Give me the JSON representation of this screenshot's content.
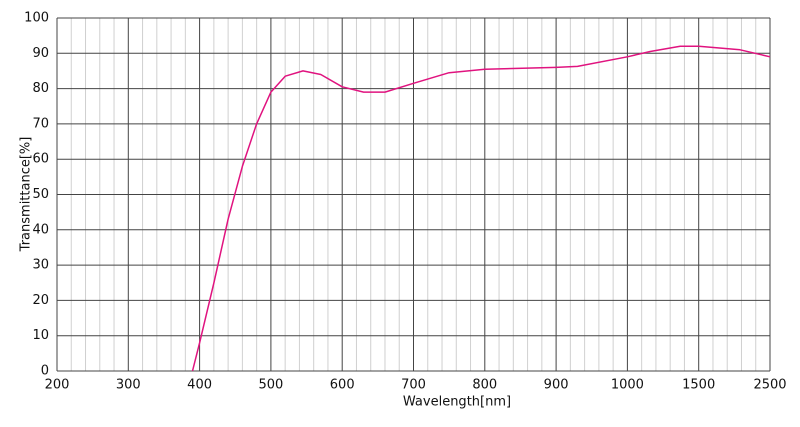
{
  "chart_data": {
    "type": "line",
    "x_label": "Wavelength[nm]",
    "y_label": "Transmittance[%]",
    "x": [
      390,
      400,
      420,
      440,
      460,
      480,
      500,
      520,
      545,
      570,
      600,
      630,
      660,
      700,
      750,
      800,
      900,
      930,
      1000,
      1160,
      1370,
      1500,
      2080,
      2500
    ],
    "series": [
      {
        "color": "#e0137f",
        "values": [
          0,
          8,
          25,
          43,
          58,
          70,
          79,
          83.5,
          85,
          84,
          80.5,
          79,
          79,
          81.5,
          84.5,
          85.5,
          86,
          86.3,
          89,
          90.5,
          92,
          92,
          91,
          89
        ]
      }
    ],
    "xlim": [
      200,
      2500
    ],
    "xticks": [
      200,
      300,
      400,
      500,
      600,
      700,
      800,
      900,
      1000,
      1500,
      2500
    ],
    "ylim": [
      0,
      100
    ],
    "yticks": [
      0,
      10,
      20,
      30,
      40,
      50,
      60,
      70,
      80,
      90,
      100
    ],
    "grid": true,
    "minor_grid": true
  }
}
